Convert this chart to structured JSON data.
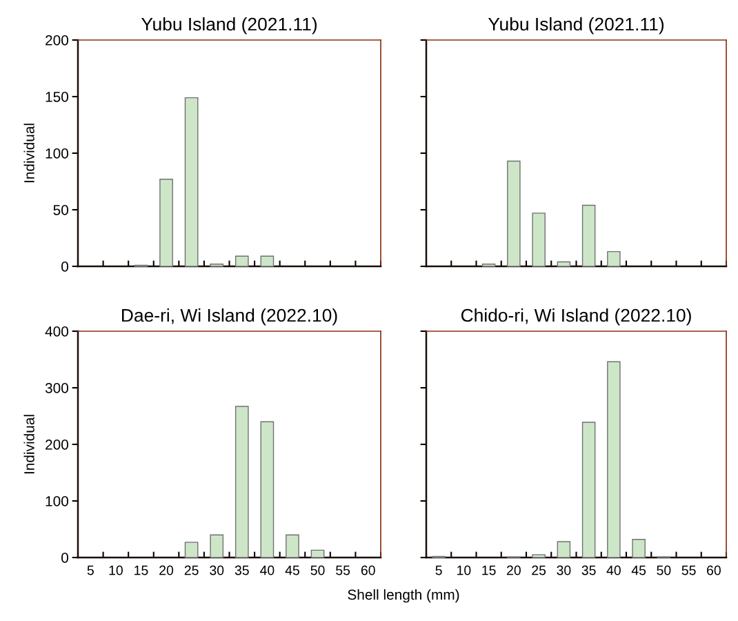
{
  "chart_data": [
    {
      "type": "bar",
      "title": "Yubu Island (2021.11)",
      "ylabel": "Individual",
      "categories": [
        "5",
        "10",
        "15",
        "20",
        "25",
        "30",
        "35",
        "40",
        "45",
        "50",
        "55",
        "60"
      ],
      "values": [
        0,
        0,
        1,
        77,
        149,
        2,
        9,
        9,
        0,
        0,
        0,
        0
      ],
      "color": "#cde6c8",
      "ylim": [
        0,
        200
      ],
      "yticks": [
        0,
        50,
        100,
        150,
        200
      ],
      "tick_labels": "y"
    },
    {
      "type": "bar",
      "title": "Yubu Island (2021.11)",
      "categories": [
        "5",
        "10",
        "15",
        "20",
        "25",
        "30",
        "35",
        "40",
        "45",
        "50",
        "55",
        "60"
      ],
      "values": [
        0,
        0,
        2,
        93,
        47,
        4,
        54,
        13,
        0,
        0,
        0,
        0
      ],
      "color": "#cde6c8",
      "ylim": [
        0,
        200
      ],
      "yticks": [
        0,
        50,
        100,
        150,
        200
      ],
      "tick_labels": false
    },
    {
      "type": "bar",
      "title": "Dae-ri, Wi Island (2022.10)",
      "ylabel": "Individual",
      "xlabel": "Shell length (mm)",
      "categories": [
        "5",
        "10",
        "15",
        "20",
        "25",
        "30",
        "35",
        "40",
        "45",
        "50",
        "55",
        "60"
      ],
      "values": [
        0,
        0,
        0,
        0,
        27,
        40,
        267,
        240,
        40,
        13,
        0,
        0
      ],
      "color": "#cde6c8",
      "ylim": [
        0,
        400
      ],
      "yticks": [
        0,
        100,
        200,
        300,
        400
      ]
    },
    {
      "type": "bar",
      "title": "Chido-ri, Wi Island (2022.10)",
      "categories": [
        "5",
        "10",
        "15",
        "20",
        "25",
        "30",
        "35",
        "40",
        "45",
        "50",
        "55",
        "60"
      ],
      "values": [
        2,
        0,
        0,
        1,
        5,
        28,
        239,
        346,
        32,
        1,
        0,
        0
      ],
      "color": "#cde6c8",
      "ylim": [
        0,
        400
      ],
      "yticks": [
        0,
        100,
        200,
        300,
        400
      ],
      "tick_labels": "x"
    }
  ]
}
